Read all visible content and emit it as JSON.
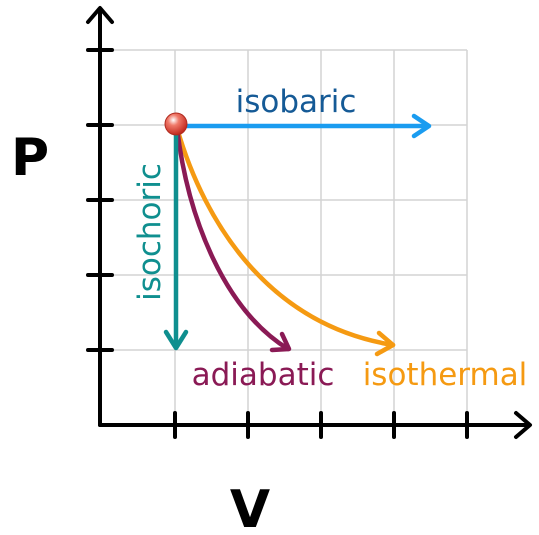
{
  "axes": {
    "y_label": "P",
    "x_label": "V"
  },
  "processes": {
    "isobaric": {
      "label": "isobaric",
      "color": "#1a9cf0",
      "label_color": "#155a96"
    },
    "isochoric": {
      "label": "isochoric",
      "color": "#0f8f8f"
    },
    "adiabatic": {
      "label": "adiabatic",
      "color": "#8a1a55"
    },
    "isothermal": {
      "label": "isothermal",
      "color": "#f59a12"
    }
  },
  "colors": {
    "grid": "#d4d4d4",
    "axis": "#000000",
    "state_point": "#e0392b"
  }
}
